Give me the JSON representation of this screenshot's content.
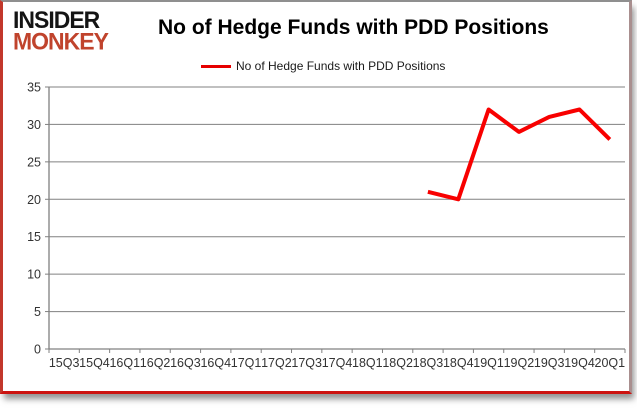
{
  "brand": {
    "line1": "INSIDER",
    "line2": "MONKEY",
    "red": "#c0432c",
    "black": "#141414"
  },
  "header": {
    "title": "No of Hedge Funds with PDD Positions"
  },
  "legend": {
    "label": "No of Hedge Funds with PDD Positions",
    "swatch_color": "#e60000"
  },
  "chart_data": {
    "type": "line",
    "title": "No of Hedge Funds with PDD Positions",
    "categories": [
      "15Q3",
      "15Q4",
      "16Q1",
      "16Q2",
      "16Q3",
      "16Q4",
      "17Q1",
      "17Q2",
      "17Q3",
      "17Q4",
      "18Q1",
      "18Q2",
      "18Q3",
      "18Q4",
      "19Q1",
      "19Q2",
      "19Q3",
      "19Q4",
      "20Q1"
    ],
    "series": [
      {
        "name": "No of Hedge Funds with PDD Positions",
        "color": "#f80000",
        "stroke_width": 4,
        "values": [
          null,
          null,
          null,
          null,
          null,
          null,
          null,
          null,
          null,
          null,
          null,
          null,
          21,
          20,
          32,
          29,
          31,
          32,
          28
        ]
      }
    ],
    "ylim": [
      0,
      35
    ],
    "yticks": [
      0,
      5,
      10,
      15,
      20,
      25,
      30,
      35
    ],
    "grid": "horizontal",
    "gridline_color": "#808080",
    "axis_color": "#808080",
    "tick_label_color": "#333333",
    "tick_font_size": 12.5,
    "legend_position": "top-center"
  }
}
